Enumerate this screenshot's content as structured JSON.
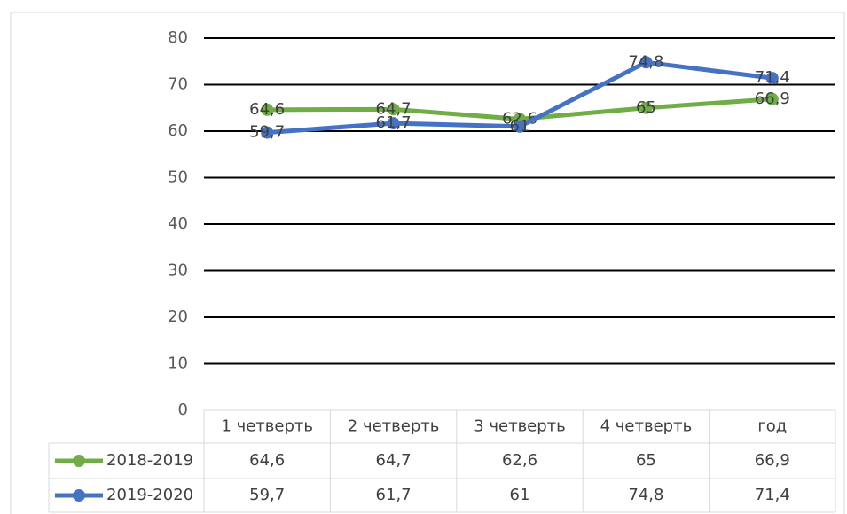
{
  "chart_data": {
    "type": "line",
    "categories": [
      "1 четверть",
      "2 четверть",
      "3 четверть",
      "4 четверть",
      "год"
    ],
    "series": [
      {
        "name": "2018-2019",
        "color": "#70ad47",
        "values": [
          64.6,
          64.7,
          62.6,
          65,
          66.9
        ],
        "value_labels": [
          "64,6",
          "64,7",
          "62,6",
          "65",
          "66,9"
        ]
      },
      {
        "name": "2019-2020",
        "color": "#4472c4",
        "values": [
          59.7,
          61.7,
          61,
          74.8,
          71.4
        ],
        "value_labels": [
          "59,7",
          "61,7",
          "61",
          "74,8",
          "71,4"
        ]
      }
    ],
    "ylim": [
      0,
      80
    ],
    "yticks": [
      0,
      10,
      20,
      30,
      40,
      50,
      60,
      70,
      80
    ],
    "grid": true,
    "data_table": true
  }
}
